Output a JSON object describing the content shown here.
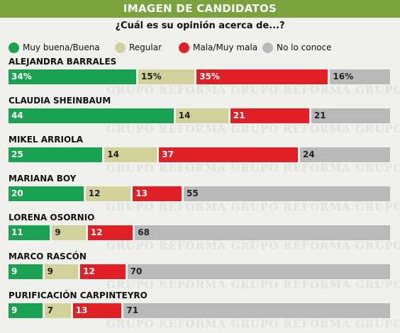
{
  "header": {
    "title": "IMAGEN DE CANDIDATOS",
    "question": "¿Cuál es su opinión acerca de...?"
  },
  "watermark_text": "GRUPO REFORMA",
  "colors": {
    "title_bg": "#7aa33d",
    "background": "#f0f0ec",
    "Muy buena/Buena": "#1aa152",
    "Regular": "#d3d19b",
    "Mala/Muy mala": "#e01f26",
    "No lo conoce": "#b9b9b9"
  },
  "chart_data": {
    "type": "bar",
    "stacked": true,
    "orientation": "horizontal",
    "title": "IMAGEN DE CANDIDATOS",
    "subtitle": "¿Cuál es su opinión acerca de...?",
    "legend_position": "top",
    "grid": false,
    "xlim": [
      0,
      100
    ],
    "legend": [
      "Muy buena/Buena",
      "Regular",
      "Mala/Muy mala",
      "No lo conoce"
    ],
    "categories": [
      "ALEJANDRA BARRALES",
      "CLAUDIA SHEINBAUM",
      "MIKEL ARRIOLA",
      "MARIANA BOY",
      "LORENA OSORNIO",
      "MARCO RASCÓN",
      "PURIFICACIÓN CARPINTEYRO"
    ],
    "series": [
      {
        "name": "Muy buena/Buena",
        "values": [
          34,
          44,
          25,
          20,
          11,
          9,
          9
        ]
      },
      {
        "name": "Regular",
        "values": [
          15,
          14,
          14,
          12,
          9,
          9,
          7
        ]
      },
      {
        "name": "Mala/Muy mala",
        "values": [
          35,
          21,
          37,
          13,
          12,
          12,
          13
        ]
      },
      {
        "name": "No lo conoce",
        "values": [
          16,
          21,
          24,
          55,
          68,
          70,
          71
        ]
      }
    ],
    "value_labels": [
      [
        "34%",
        "15%",
        "35%",
        "16%"
      ],
      [
        "44",
        "14",
        "21",
        "21"
      ],
      [
        "25",
        "14",
        "37",
        "24"
      ],
      [
        "20",
        "12",
        "13",
        "55"
      ],
      [
        "11",
        "9",
        "12",
        "68"
      ],
      [
        "9",
        "9",
        "12",
        "70"
      ],
      [
        "9",
        "7",
        "13",
        "71"
      ]
    ]
  }
}
